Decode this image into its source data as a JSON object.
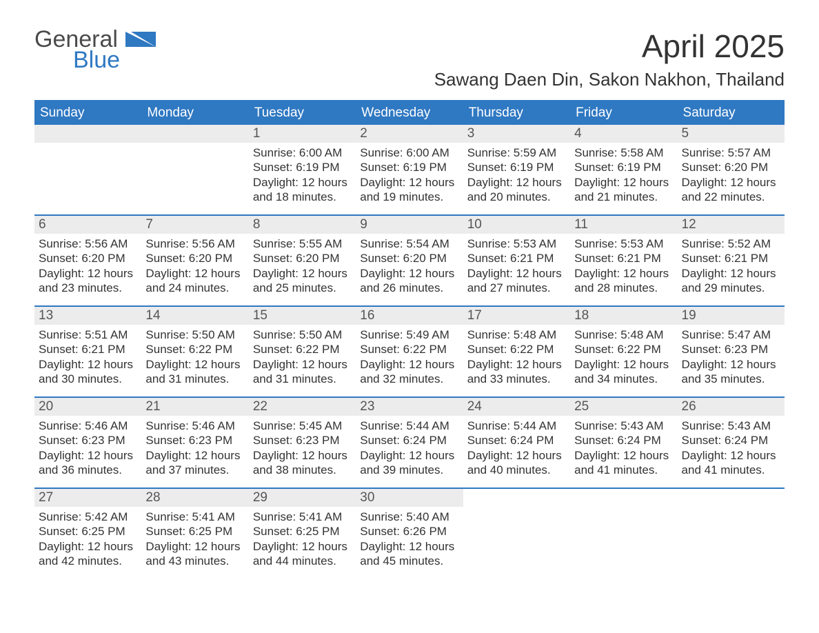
{
  "logo": {
    "general": "General",
    "blue": "Blue"
  },
  "title": {
    "month": "April 2025",
    "location": "Sawang Daen Din, Sakon Nakhon, Thailand"
  },
  "header_bg": "#2f78c2",
  "daynum_bg": "#ececec",
  "days": [
    "Sunday",
    "Monday",
    "Tuesday",
    "Wednesday",
    "Thursday",
    "Friday",
    "Saturday"
  ],
  "weeks": [
    [
      {
        "n": "",
        "sr": "",
        "ss": "",
        "dl1": "",
        "dl2": ""
      },
      {
        "n": "",
        "sr": "",
        "ss": "",
        "dl1": "",
        "dl2": ""
      },
      {
        "n": "1",
        "sr": "Sunrise: 6:00 AM",
        "ss": "Sunset: 6:19 PM",
        "dl1": "Daylight: 12 hours",
        "dl2": "and 18 minutes."
      },
      {
        "n": "2",
        "sr": "Sunrise: 6:00 AM",
        "ss": "Sunset: 6:19 PM",
        "dl1": "Daylight: 12 hours",
        "dl2": "and 19 minutes."
      },
      {
        "n": "3",
        "sr": "Sunrise: 5:59 AM",
        "ss": "Sunset: 6:19 PM",
        "dl1": "Daylight: 12 hours",
        "dl2": "and 20 minutes."
      },
      {
        "n": "4",
        "sr": "Sunrise: 5:58 AM",
        "ss": "Sunset: 6:19 PM",
        "dl1": "Daylight: 12 hours",
        "dl2": "and 21 minutes."
      },
      {
        "n": "5",
        "sr": "Sunrise: 5:57 AM",
        "ss": "Sunset: 6:20 PM",
        "dl1": "Daylight: 12 hours",
        "dl2": "and 22 minutes."
      }
    ],
    [
      {
        "n": "6",
        "sr": "Sunrise: 5:56 AM",
        "ss": "Sunset: 6:20 PM",
        "dl1": "Daylight: 12 hours",
        "dl2": "and 23 minutes."
      },
      {
        "n": "7",
        "sr": "Sunrise: 5:56 AM",
        "ss": "Sunset: 6:20 PM",
        "dl1": "Daylight: 12 hours",
        "dl2": "and 24 minutes."
      },
      {
        "n": "8",
        "sr": "Sunrise: 5:55 AM",
        "ss": "Sunset: 6:20 PM",
        "dl1": "Daylight: 12 hours",
        "dl2": "and 25 minutes."
      },
      {
        "n": "9",
        "sr": "Sunrise: 5:54 AM",
        "ss": "Sunset: 6:20 PM",
        "dl1": "Daylight: 12 hours",
        "dl2": "and 26 minutes."
      },
      {
        "n": "10",
        "sr": "Sunrise: 5:53 AM",
        "ss": "Sunset: 6:21 PM",
        "dl1": "Daylight: 12 hours",
        "dl2": "and 27 minutes."
      },
      {
        "n": "11",
        "sr": "Sunrise: 5:53 AM",
        "ss": "Sunset: 6:21 PM",
        "dl1": "Daylight: 12 hours",
        "dl2": "and 28 minutes."
      },
      {
        "n": "12",
        "sr": "Sunrise: 5:52 AM",
        "ss": "Sunset: 6:21 PM",
        "dl1": "Daylight: 12 hours",
        "dl2": "and 29 minutes."
      }
    ],
    [
      {
        "n": "13",
        "sr": "Sunrise: 5:51 AM",
        "ss": "Sunset: 6:21 PM",
        "dl1": "Daylight: 12 hours",
        "dl2": "and 30 minutes."
      },
      {
        "n": "14",
        "sr": "Sunrise: 5:50 AM",
        "ss": "Sunset: 6:22 PM",
        "dl1": "Daylight: 12 hours",
        "dl2": "and 31 minutes."
      },
      {
        "n": "15",
        "sr": "Sunrise: 5:50 AM",
        "ss": "Sunset: 6:22 PM",
        "dl1": "Daylight: 12 hours",
        "dl2": "and 31 minutes."
      },
      {
        "n": "16",
        "sr": "Sunrise: 5:49 AM",
        "ss": "Sunset: 6:22 PM",
        "dl1": "Daylight: 12 hours",
        "dl2": "and 32 minutes."
      },
      {
        "n": "17",
        "sr": "Sunrise: 5:48 AM",
        "ss": "Sunset: 6:22 PM",
        "dl1": "Daylight: 12 hours",
        "dl2": "and 33 minutes."
      },
      {
        "n": "18",
        "sr": "Sunrise: 5:48 AM",
        "ss": "Sunset: 6:22 PM",
        "dl1": "Daylight: 12 hours",
        "dl2": "and 34 minutes."
      },
      {
        "n": "19",
        "sr": "Sunrise: 5:47 AM",
        "ss": "Sunset: 6:23 PM",
        "dl1": "Daylight: 12 hours",
        "dl2": "and 35 minutes."
      }
    ],
    [
      {
        "n": "20",
        "sr": "Sunrise: 5:46 AM",
        "ss": "Sunset: 6:23 PM",
        "dl1": "Daylight: 12 hours",
        "dl2": "and 36 minutes."
      },
      {
        "n": "21",
        "sr": "Sunrise: 5:46 AM",
        "ss": "Sunset: 6:23 PM",
        "dl1": "Daylight: 12 hours",
        "dl2": "and 37 minutes."
      },
      {
        "n": "22",
        "sr": "Sunrise: 5:45 AM",
        "ss": "Sunset: 6:23 PM",
        "dl1": "Daylight: 12 hours",
        "dl2": "and 38 minutes."
      },
      {
        "n": "23",
        "sr": "Sunrise: 5:44 AM",
        "ss": "Sunset: 6:24 PM",
        "dl1": "Daylight: 12 hours",
        "dl2": "and 39 minutes."
      },
      {
        "n": "24",
        "sr": "Sunrise: 5:44 AM",
        "ss": "Sunset: 6:24 PM",
        "dl1": "Daylight: 12 hours",
        "dl2": "and 40 minutes."
      },
      {
        "n": "25",
        "sr": "Sunrise: 5:43 AM",
        "ss": "Sunset: 6:24 PM",
        "dl1": "Daylight: 12 hours",
        "dl2": "and 41 minutes."
      },
      {
        "n": "26",
        "sr": "Sunrise: 5:43 AM",
        "ss": "Sunset: 6:24 PM",
        "dl1": "Daylight: 12 hours",
        "dl2": "and 41 minutes."
      }
    ],
    [
      {
        "n": "27",
        "sr": "Sunrise: 5:42 AM",
        "ss": "Sunset: 6:25 PM",
        "dl1": "Daylight: 12 hours",
        "dl2": "and 42 minutes."
      },
      {
        "n": "28",
        "sr": "Sunrise: 5:41 AM",
        "ss": "Sunset: 6:25 PM",
        "dl1": "Daylight: 12 hours",
        "dl2": "and 43 minutes."
      },
      {
        "n": "29",
        "sr": "Sunrise: 5:41 AM",
        "ss": "Sunset: 6:25 PM",
        "dl1": "Daylight: 12 hours",
        "dl2": "and 44 minutes."
      },
      {
        "n": "30",
        "sr": "Sunrise: 5:40 AM",
        "ss": "Sunset: 6:26 PM",
        "dl1": "Daylight: 12 hours",
        "dl2": "and 45 minutes."
      },
      {
        "n": "",
        "sr": "",
        "ss": "",
        "dl1": "",
        "dl2": ""
      },
      {
        "n": "",
        "sr": "",
        "ss": "",
        "dl1": "",
        "dl2": ""
      },
      {
        "n": "",
        "sr": "",
        "ss": "",
        "dl1": "",
        "dl2": ""
      }
    ]
  ]
}
